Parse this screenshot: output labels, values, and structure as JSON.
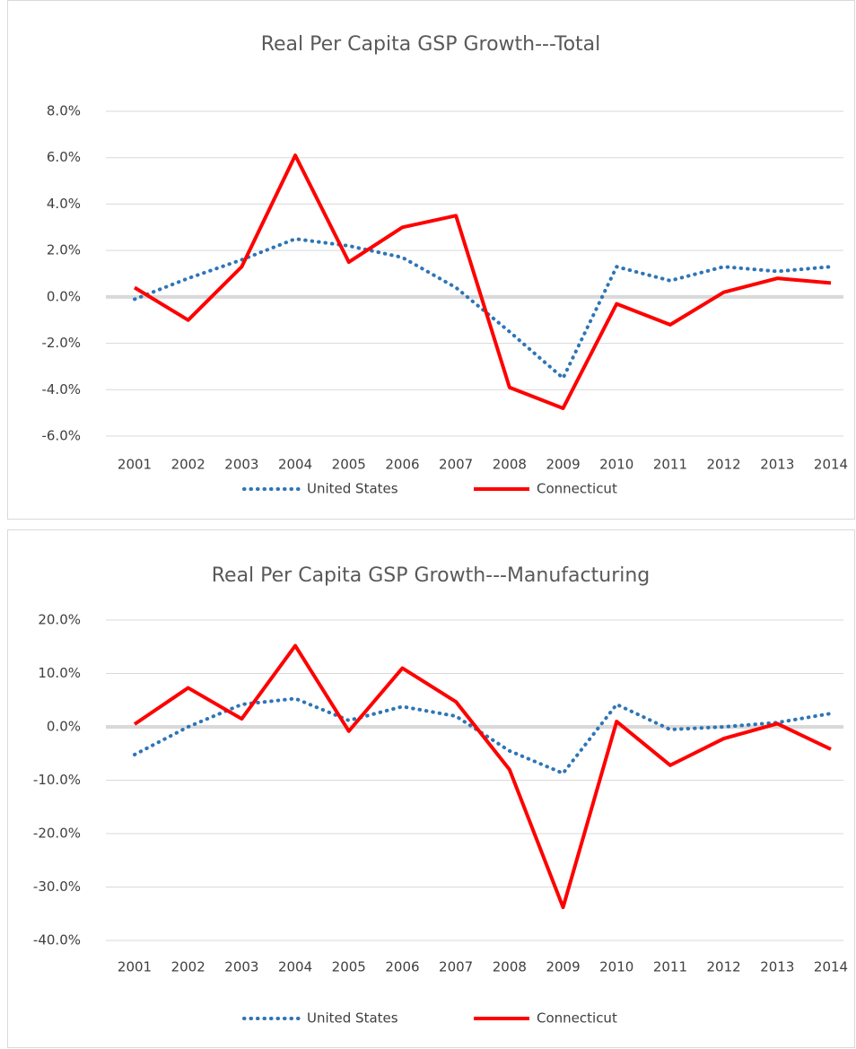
{
  "chart_data": [
    {
      "type": "line",
      "title": "Real Per Capita GSP Growth---Total",
      "categories": [
        "2001",
        "2002",
        "2003",
        "2004",
        "2005",
        "2006",
        "2007",
        "2008",
        "2009",
        "2010",
        "2011",
        "2012",
        "2013",
        "2014"
      ],
      "series": [
        {
          "name": "United States",
          "color": "#2e75b6",
          "style": "dotted",
          "values": [
            -0.1,
            0.8,
            1.6,
            2.5,
            2.2,
            1.7,
            0.4,
            -1.5,
            -3.5,
            1.3,
            0.7,
            1.3,
            1.1,
            1.3
          ]
        },
        {
          "name": "Connecticut",
          "color": "#ff0000",
          "style": "solid",
          "values": [
            0.4,
            -1.0,
            1.3,
            6.1,
            1.5,
            3.0,
            3.5,
            -3.9,
            -4.8,
            -0.3,
            -1.2,
            0.2,
            0.8,
            0.6
          ]
        }
      ],
      "ylim": [
        -6,
        8
      ],
      "yticks": [
        {
          "value": -6,
          "label": "-6.0%"
        },
        {
          "value": -4,
          "label": "-4.0%"
        },
        {
          "value": -2,
          "label": "-2.0%"
        },
        {
          "value": 0,
          "label": "0.0%"
        },
        {
          "value": 2,
          "label": "2.0%"
        },
        {
          "value": 4,
          "label": "4.0%"
        },
        {
          "value": 6,
          "label": "6.0%"
        },
        {
          "value": 8,
          "label": "8.0%"
        }
      ],
      "grid": true,
      "legend": "bottom"
    },
    {
      "type": "line",
      "title": "Real Per Capita GSP Growth---Manufacturing",
      "categories": [
        "2001",
        "2002",
        "2003",
        "2004",
        "2005",
        "2006",
        "2007",
        "2008",
        "2009",
        "2010",
        "2011",
        "2012",
        "2013",
        "2014"
      ],
      "series": [
        {
          "name": "United States",
          "color": "#2e75b6",
          "style": "dotted",
          "values": [
            -5.2,
            0,
            4.2,
            5.3,
            1.2,
            3.8,
            2.0,
            -4.5,
            -8.7,
            4.2,
            -0.5,
            0,
            0.8,
            2.5
          ]
        },
        {
          "name": "Connecticut",
          "color": "#ff0000",
          "style": "solid",
          "values": [
            0.5,
            7.3,
            1.5,
            15.2,
            -0.8,
            11.0,
            4.7,
            -8.0,
            -33.8,
            1.0,
            -7.2,
            -2.2,
            0.6,
            -4.2
          ]
        }
      ],
      "ylim": [
        -40,
        20
      ],
      "yticks": [
        {
          "value": -40,
          "label": "-40.0%"
        },
        {
          "value": -30,
          "label": "-30.0%"
        },
        {
          "value": -20,
          "label": "-20.0%"
        },
        {
          "value": -10,
          "label": "-10.0%"
        },
        {
          "value": 0,
          "label": "0.0%"
        },
        {
          "value": 10,
          "label": "10.0%"
        },
        {
          "value": 20,
          "label": "20.0%"
        }
      ],
      "grid": true,
      "legend": "bottom"
    }
  ]
}
